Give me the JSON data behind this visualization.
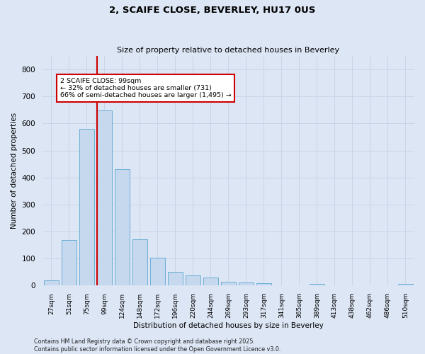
{
  "title": "2, SCAIFE CLOSE, BEVERLEY, HU17 0US",
  "subtitle": "Size of property relative to detached houses in Beverley",
  "xlabel": "Distribution of detached houses by size in Beverley",
  "ylabel": "Number of detached properties",
  "categories": [
    "27sqm",
    "51sqm",
    "75sqm",
    "99sqm",
    "124sqm",
    "148sqm",
    "172sqm",
    "196sqm",
    "220sqm",
    "244sqm",
    "269sqm",
    "293sqm",
    "317sqm",
    "341sqm",
    "365sqm",
    "389sqm",
    "413sqm",
    "438sqm",
    "462sqm",
    "486sqm",
    "510sqm"
  ],
  "values": [
    18,
    168,
    580,
    648,
    430,
    172,
    103,
    52,
    38,
    30,
    14,
    12,
    9,
    0,
    0,
    7,
    0,
    0,
    0,
    0,
    6
  ],
  "bar_color": "#c5d8ed",
  "bar_edge_color": "#6aaed6",
  "grid_color": "#c8d4e8",
  "background_color": "#dce6f5",
  "annotation_line1": "2 SCAIFE CLOSE: 99sqm",
  "annotation_line2": "← 32% of detached houses are smaller (731)",
  "annotation_line3": "66% of semi-detached houses are larger (1,495) →",
  "annotation_box_color": "#ffffff",
  "annotation_box_edge": "#cc0000",
  "vline_color": "#cc0000",
  "footer_line1": "Contains HM Land Registry data © Crown copyright and database right 2025.",
  "footer_line2": "Contains public sector information licensed under the Open Government Licence v3.0.",
  "ylim": [
    0,
    850
  ],
  "yticks": [
    0,
    100,
    200,
    300,
    400,
    500,
    600,
    700,
    800
  ]
}
